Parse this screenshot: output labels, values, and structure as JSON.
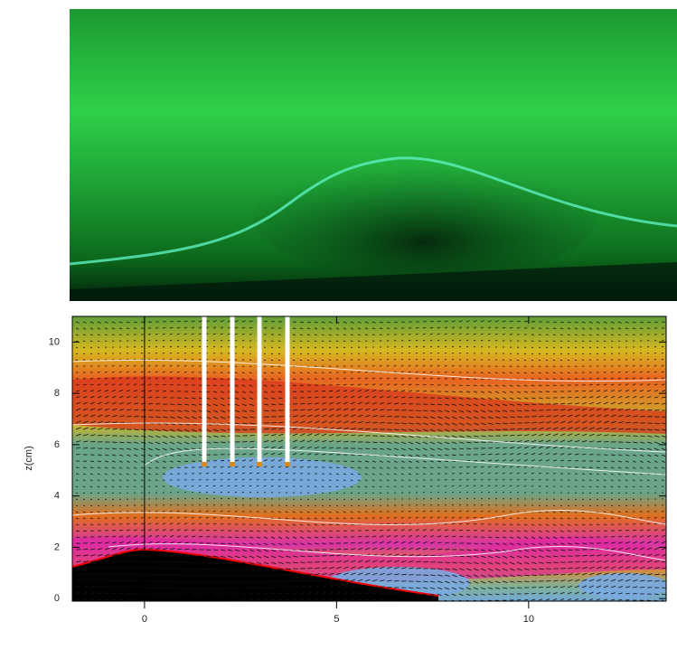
{
  "chart_data": {
    "type": "contour",
    "ylabel": "z(cm)",
    "xlim": [
      -1.88,
      13.58
    ],
    "ylim": [
      -0.1,
      11
    ],
    "xticks": [
      0,
      5,
      10
    ],
    "yticks": [
      0,
      2,
      4,
      6,
      8,
      10
    ]
  }
}
